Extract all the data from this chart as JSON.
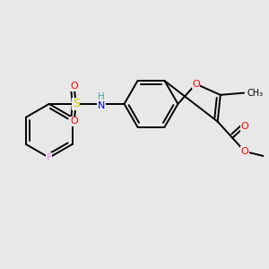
{
  "background_color": "#e8e8e8",
  "atom_colors": {
    "O": "#ff0000",
    "N": "#0000cd",
    "S": "#cccc00",
    "F": "#ee82ee",
    "C": "#000000"
  },
  "figsize": [
    3.0,
    3.0
  ],
  "dpi": 100,
  "xlim": [
    -3.8,
    3.2
  ],
  "ylim": [
    -2.8,
    2.2
  ],
  "lw": 1.4,
  "doff": 0.09,
  "shrink": 0.12
}
